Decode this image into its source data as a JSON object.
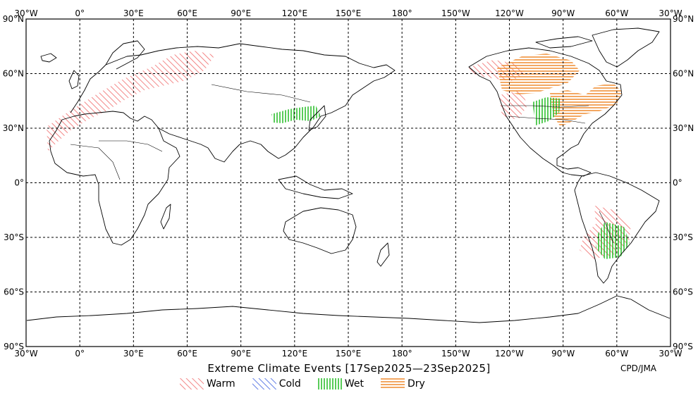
{
  "title": "Extreme Climate Events [17Sep2025—23Sep2025]",
  "credit": "CPD/JMA",
  "axes": {
    "lon_labels": [
      "30°W",
      "0°",
      "30°E",
      "60°E",
      "90°E",
      "120°E",
      "150°E",
      "180°",
      "150°W",
      "120°W",
      "90°W",
      "60°W",
      "30°W"
    ],
    "lat_labels": [
      "90°N",
      "60°N",
      "30°N",
      "0°",
      "30°S",
      "60°S",
      "90°S"
    ]
  },
  "legend": [
    {
      "label": "Warm",
      "color": "#f06a6a",
      "pattern": "diag"
    },
    {
      "label": "Cold",
      "color": "#3b5fe0",
      "pattern": "diag"
    },
    {
      "label": "Wet",
      "color": "#2fbf2f",
      "pattern": "vert"
    },
    {
      "label": "Dry",
      "color": "#f0913a",
      "pattern": "horiz"
    }
  ]
}
